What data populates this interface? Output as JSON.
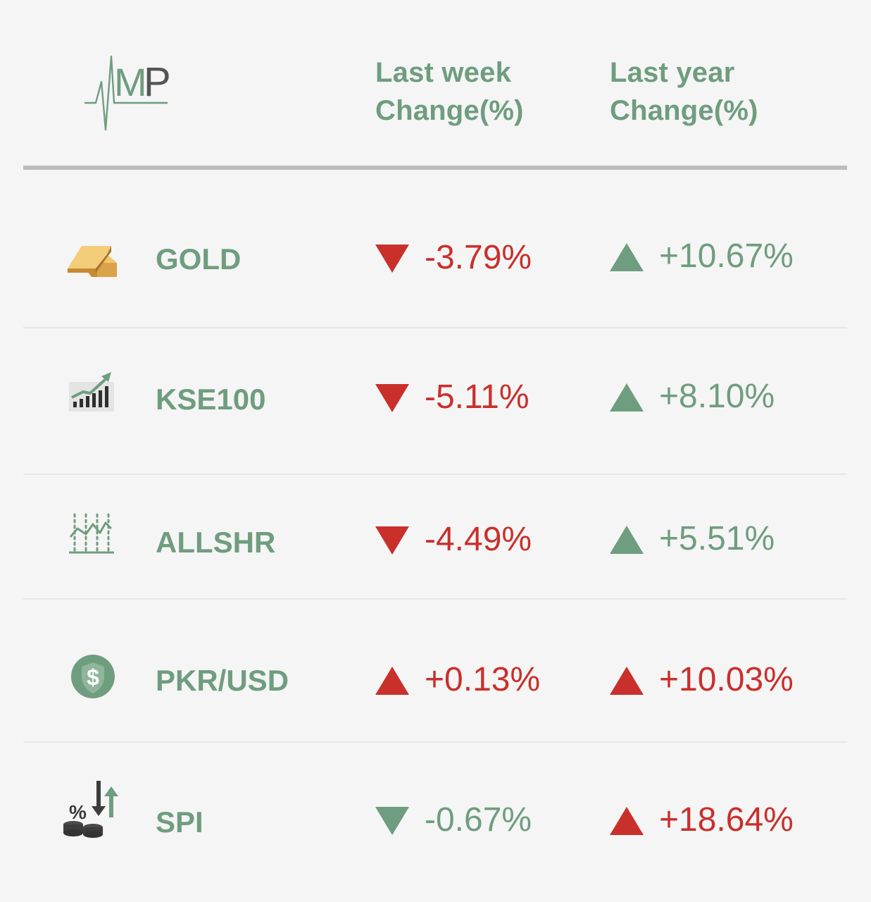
{
  "logo": {
    "icon": "amp-logo-icon",
    "text": "AMP"
  },
  "headers": {
    "last_week": [
      "Last week",
      "Change(%)"
    ],
    "last_year": [
      "Last year",
      "Change(%)"
    ]
  },
  "colors": {
    "background": "#f5f5f5",
    "accent_green": "#6f9d7f",
    "negative_red": "#c9302c",
    "rule": "#bcbcbc",
    "gold": "#e0a94a",
    "icon_dark": "#3c3c3c"
  },
  "rows": [
    {
      "name": "GOLD",
      "icon": "gold-bar-icon",
      "week": {
        "value": "-3.79%",
        "direction": "down",
        "color": "red"
      },
      "year": {
        "value": "+10.67%",
        "direction": "up",
        "color": "green"
      }
    },
    {
      "name": "KSE100",
      "icon": "bar-chart-up-icon",
      "week": {
        "value": "-5.11%",
        "direction": "down",
        "color": "red"
      },
      "year": {
        "value": "+8.10%",
        "direction": "up",
        "color": "green"
      }
    },
    {
      "name": "ALLSHR",
      "icon": "line-chart-icon",
      "week": {
        "value": "-4.49%",
        "direction": "down",
        "color": "red"
      },
      "year": {
        "value": "+5.51%",
        "direction": "up",
        "color": "green"
      }
    },
    {
      "name": "PKR/USD",
      "icon": "dollar-coin-icon",
      "week": {
        "value": "+0.13%",
        "direction": "up",
        "color": "red"
      },
      "year": {
        "value": "+10.03%",
        "direction": "up",
        "color": "red"
      }
    },
    {
      "name": "SPI",
      "icon": "percent-coins-arrows-icon",
      "week": {
        "value": "-0.67%",
        "direction": "down",
        "color": "green"
      },
      "year": {
        "value": "+18.64%",
        "direction": "up",
        "color": "red"
      }
    }
  ]
}
